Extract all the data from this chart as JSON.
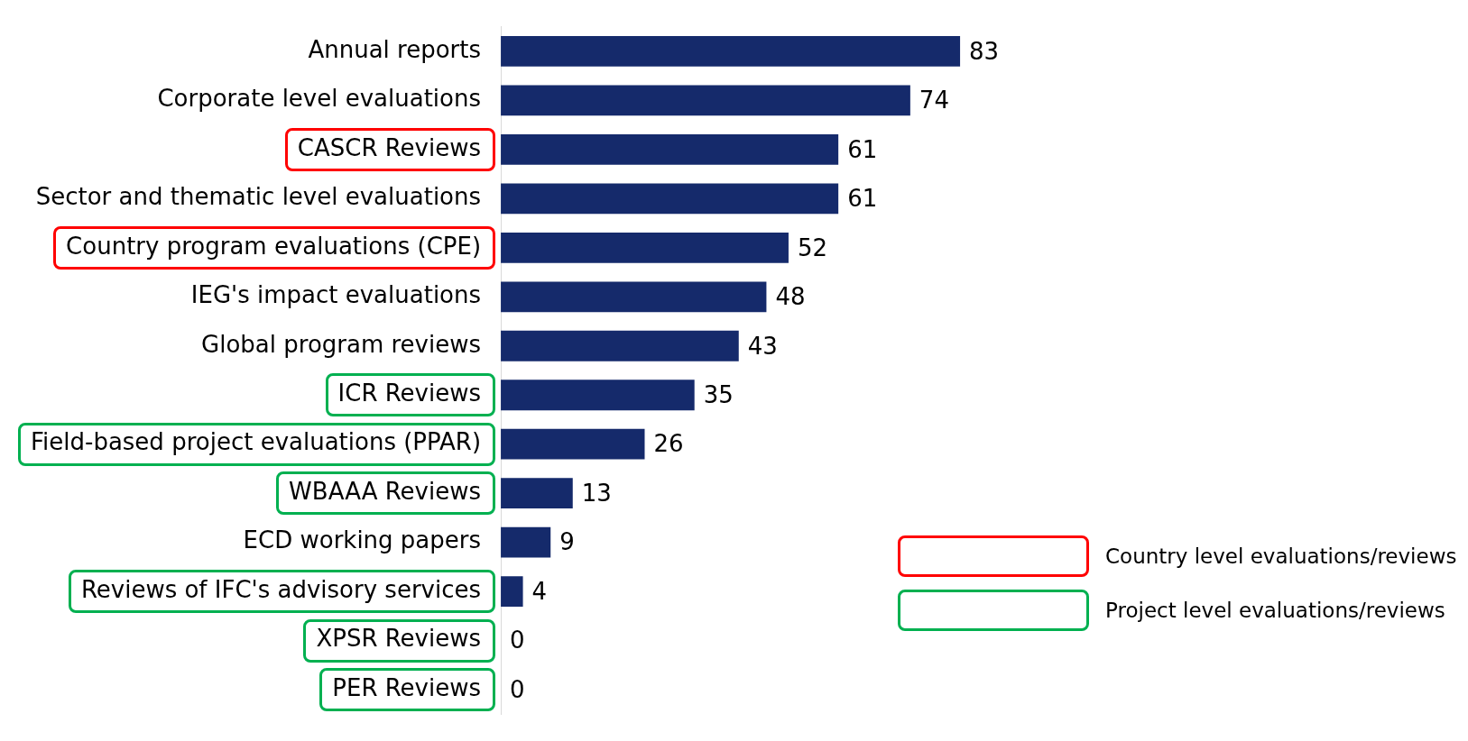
{
  "chart_data": {
    "type": "bar",
    "orientation": "horizontal",
    "tick_labels": "y",
    "data_labels": true,
    "categories": [
      "Annual reports",
      "Corporate level evaluations",
      "CASCR Reviews",
      "Sector and thematic level evaluations",
      "Country program evaluations (CPE)",
      "IEG's impact evaluations",
      "Global program reviews",
      "ICR Reviews",
      "Field-based project evaluations (PPAR)",
      "WBAAA Reviews",
      "ECD working papers",
      "Reviews of IFC's advisory services",
      "XPSR Reviews",
      "PER Reviews"
    ],
    "values": [
      83,
      74,
      61,
      61,
      52,
      48,
      43,
      35,
      26,
      13,
      9,
      4,
      0,
      0
    ],
    "color": "#152a6b",
    "annotations": [
      "Country level evaluations/reviews",
      "Project level evaluations/reviews"
    ]
  }
}
